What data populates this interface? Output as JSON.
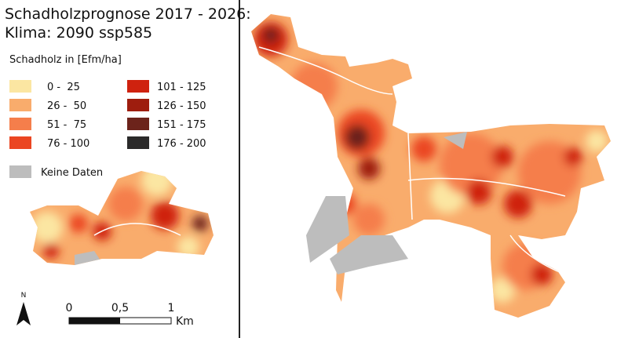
{
  "title_lines": [
    "Schadholzprognose 2017 - 2026:",
    "Klima: 2090 ssp585"
  ],
  "legend": {
    "title": "Schadholz in [Efm/ha]",
    "classes": [
      {
        "label": "0 -  25",
        "color": "#fbe6a2"
      },
      {
        "label": "26 -  50",
        "color": "#f9ac6c"
      },
      {
        "label": "51 -  75",
        "color": "#f57e4b"
      },
      {
        "label": "76 - 100",
        "color": "#eb4622"
      },
      {
        "label": "101 - 125",
        "color": "#cf220f"
      },
      {
        "label": "126 - 150",
        "color": "#9e1d0e"
      },
      {
        "label": "151 - 175",
        "color": "#6c231b"
      },
      {
        "label": "176 - 200",
        "color": "#2b2a2a"
      }
    ],
    "no_data": {
      "label": "Keine Daten",
      "color": "#bdbdbd"
    }
  },
  "north_arrow": "N",
  "scale_bar": {
    "labels": [
      "0",
      "0,5",
      "1"
    ],
    "unit": "Km"
  }
}
